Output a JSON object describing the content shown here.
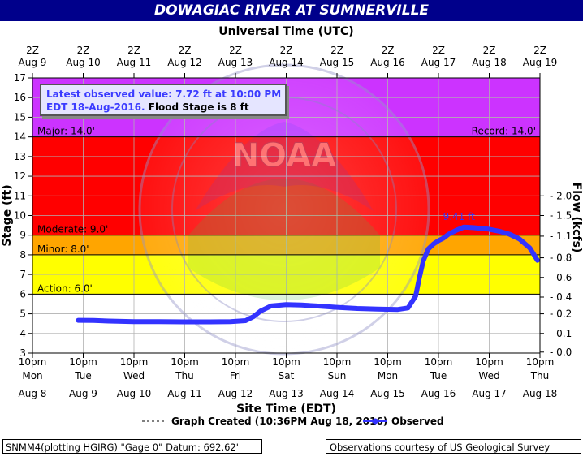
{
  "chart_data": {
    "type": "line",
    "title": "DOWAGIAC RIVER AT SUMNERVILLE",
    "top_axis": {
      "label": "Universal Time (UTC)",
      "ticks": [
        {
          "hour": "2Z",
          "date": "Aug  9"
        },
        {
          "hour": "2Z",
          "date": "Aug 10"
        },
        {
          "hour": "2Z",
          "date": "Aug 11"
        },
        {
          "hour": "2Z",
          "date": "Aug 12"
        },
        {
          "hour": "2Z",
          "date": "Aug 13"
        },
        {
          "hour": "2Z",
          "date": "Aug 14"
        },
        {
          "hour": "2Z",
          "date": "Aug 15"
        },
        {
          "hour": "2Z",
          "date": "Aug 16"
        },
        {
          "hour": "2Z",
          "date": "Aug 17"
        },
        {
          "hour": "2Z",
          "date": "Aug 18"
        },
        {
          "hour": "2Z",
          "date": "Aug 19"
        }
      ]
    },
    "bottom_axis": {
      "label": "Site Time (EDT)",
      "ticks": [
        {
          "time": "10pm",
          "day": "Mon",
          "date": "Aug 8"
        },
        {
          "time": "10pm",
          "day": "Tue",
          "date": "Aug 9"
        },
        {
          "time": "10pm",
          "day": "Wed",
          "date": "Aug 10"
        },
        {
          "time": "10pm",
          "day": "Thu",
          "date": "Aug 11"
        },
        {
          "time": "10pm",
          "day": "Fri",
          "date": "Aug 12"
        },
        {
          "time": "10pm",
          "day": "Sat",
          "date": "Aug 13"
        },
        {
          "time": "10pm",
          "day": "Sun",
          "date": "Aug 14"
        },
        {
          "time": "10pm",
          "day": "Mon",
          "date": "Aug 15"
        },
        {
          "time": "10pm",
          "day": "Tue",
          "date": "Aug 16"
        },
        {
          "time": "10pm",
          "day": "Wed",
          "date": "Aug 17"
        },
        {
          "time": "10pm",
          "day": "Thu",
          "date": "Aug 18"
        }
      ]
    },
    "ylabel": "Stage (ft)",
    "ylim": [
      3,
      17
    ],
    "yticks": [
      3,
      4,
      5,
      6,
      7,
      8,
      9,
      10,
      11,
      12,
      13,
      14,
      15,
      16,
      17
    ],
    "y2label": "Flow (kcfs)",
    "y2ticks": [
      {
        "stage": 3.05,
        "label": "0.0"
      },
      {
        "stage": 4.0,
        "label": "0.1"
      },
      {
        "stage": 5.0,
        "label": "0.2"
      },
      {
        "stage": 5.85,
        "label": "0.4"
      },
      {
        "stage": 6.85,
        "label": "0.6"
      },
      {
        "stage": 7.85,
        "label": "0.8"
      },
      {
        "stage": 8.95,
        "label": "1.1"
      },
      {
        "stage": 10.0,
        "label": "1.5"
      },
      {
        "stage": 11.0,
        "label": "2.0"
      }
    ],
    "bands": [
      {
        "from": 3,
        "to": 6,
        "color": "#ffffff"
      },
      {
        "from": 6,
        "to": 8,
        "color": "#ffff00"
      },
      {
        "from": 8,
        "to": 9,
        "color": "#ffa500"
      },
      {
        "from": 9,
        "to": 14,
        "color": "#ff0000"
      },
      {
        "from": 14,
        "to": 17,
        "color": "#cc33ff"
      }
    ],
    "stage_lines": [
      {
        "label": "Major: 14.0'",
        "value": 14.0
      },
      {
        "label": "Moderate: 9.0'",
        "value": 9.0
      },
      {
        "label": "Minor: 8.0'",
        "value": 8.0
      },
      {
        "label": "Action: 6.0'",
        "value": 6.0
      }
    ],
    "record_label": "Record: 14.0'",
    "peak_label": "9.41 ft",
    "peak": {
      "day": 8.5,
      "value": 9.41
    },
    "x_unit": "days after 10pm Mon Aug 8 (EDT)",
    "series": [
      {
        "name": "Observed",
        "color": "#3333ff",
        "points": [
          [
            0.9,
            4.67
          ],
          [
            1.2,
            4.66
          ],
          [
            1.5,
            4.63
          ],
          [
            2.0,
            4.6
          ],
          [
            2.5,
            4.6
          ],
          [
            3.0,
            4.59
          ],
          [
            3.5,
            4.59
          ],
          [
            3.9,
            4.6
          ],
          [
            4.2,
            4.65
          ],
          [
            4.35,
            4.85
          ],
          [
            4.5,
            5.15
          ],
          [
            4.7,
            5.4
          ],
          [
            5.0,
            5.47
          ],
          [
            5.3,
            5.45
          ],
          [
            5.6,
            5.4
          ],
          [
            6.0,
            5.33
          ],
          [
            6.4,
            5.27
          ],
          [
            6.8,
            5.24
          ],
          [
            7.2,
            5.22
          ],
          [
            7.4,
            5.3
          ],
          [
            7.55,
            5.9
          ],
          [
            7.62,
            6.8
          ],
          [
            7.7,
            7.7
          ],
          [
            7.8,
            8.3
          ],
          [
            7.9,
            8.55
          ],
          [
            8.0,
            8.72
          ],
          [
            8.1,
            8.85
          ],
          [
            8.2,
            9.05
          ],
          [
            8.35,
            9.25
          ],
          [
            8.5,
            9.41
          ],
          [
            8.7,
            9.38
          ],
          [
            9.0,
            9.3
          ],
          [
            9.2,
            9.2
          ],
          [
            9.4,
            9.05
          ],
          [
            9.6,
            8.8
          ],
          [
            9.8,
            8.35
          ],
          [
            9.95,
            7.72
          ]
        ]
      }
    ],
    "legend": {
      "created": "Graph Created (10:36PM Aug 18, 2016)",
      "observed": "Observed",
      "placement": "bottom"
    },
    "info_box": {
      "line1": "Latest observed value: 7.72 ft at 10:00 PM",
      "line2a": "EDT 18-Aug-2016.",
      "line2b": "Flood Stage is 8 ft"
    },
    "watermark": "NOAA",
    "footer_left": "SNMM4(plotting HGIRG) \"Gage 0\" Datum: 692.62'",
    "footer_right": "Observations courtesy of US Geological Survey"
  }
}
